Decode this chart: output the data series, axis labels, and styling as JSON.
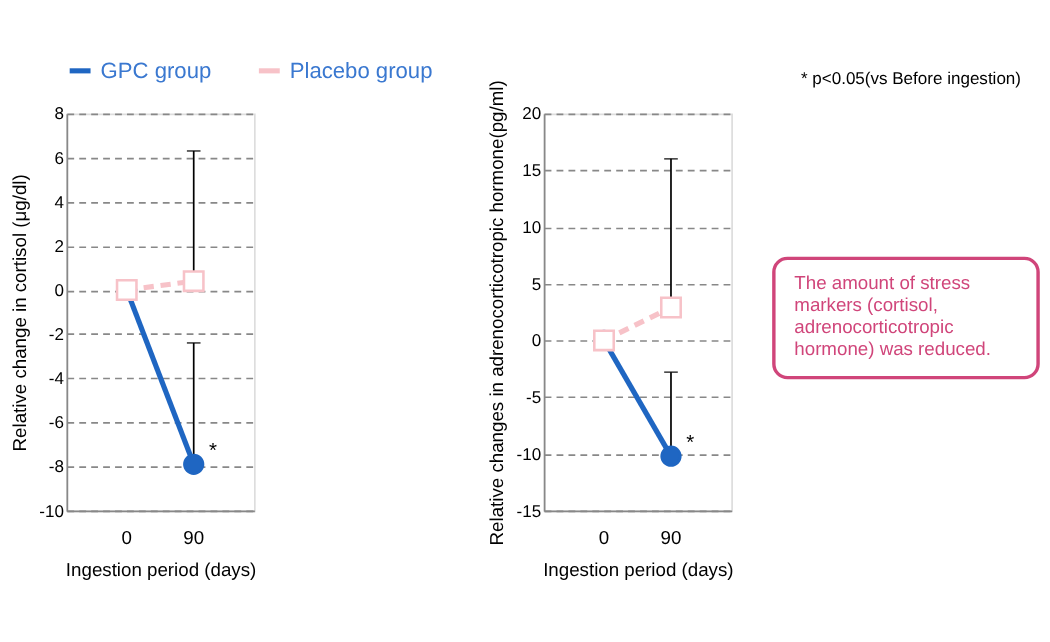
{
  "chart_data": [
    {
      "type": "line",
      "categories": [
        "0",
        "90"
      ],
      "xlabel": "Ingestion period (days)",
      "ylabel": "Relative change in cortisol (μg/dl)",
      "ylim": [
        -10,
        8
      ],
      "yticks": [
        -10,
        -8,
        -6,
        -4,
        -2,
        0,
        2,
        4,
        6,
        8
      ],
      "grid": "y",
      "legend": "top",
      "series": [
        {
          "name": "GPC group",
          "color": "#1f66c2",
          "values": [
            0,
            -7.9
          ],
          "errors": [
            null,
            [
              -7.9,
              -2.4
            ]
          ],
          "marker": "circle",
          "line_style": "solid"
        },
        {
          "name": "Placebo group",
          "color": "#f7c2c8",
          "values": [
            0,
            0.4
          ],
          "errors": [
            null,
            [
              0.4,
              6.3
            ]
          ],
          "marker": "square",
          "line_style": "dashed"
        }
      ],
      "annotations": [
        {
          "text": "*",
          "x": "90",
          "y": -7.9
        }
      ]
    },
    {
      "type": "line",
      "categories": [
        "0",
        "90"
      ],
      "xlabel": "Ingestion period (days)",
      "ylabel": "Relative changes in adrenocorticotropic hormone(pg/ml)",
      "ylim": [
        -15,
        20
      ],
      "yticks": [
        -15,
        -10,
        -5,
        0,
        5,
        10,
        15,
        20
      ],
      "grid": "y",
      "series": [
        {
          "color": "#1f66c2",
          "values": [
            0,
            -10.2
          ],
          "errors": [
            null,
            [
              -10.2,
              -2.8
            ]
          ],
          "marker": "circle",
          "line_style": "solid"
        },
        {
          "color": "#f7c2c8",
          "values": [
            0,
            2.9
          ],
          "errors": [
            null,
            [
              2.9,
              16
            ]
          ],
          "marker": "square",
          "line_style": "dashed"
        }
      ],
      "annotations": [
        {
          "text": "*",
          "x": "90",
          "y": -10.2
        },
        "* p<0.05(vs Before ingestion)",
        "The amount of stress markers (cortisol, adrenocorticotropic hormone) was reduced."
      ]
    }
  ]
}
